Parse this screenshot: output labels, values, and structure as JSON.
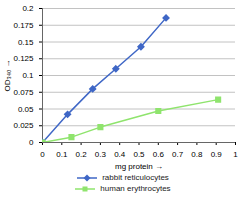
{
  "chart_data": {
    "type": "line",
    "x_label": "mg protein",
    "y_label": "OD₃₄₀",
    "series": [
      {
        "name": "rabbit reticulocytes",
        "color": "#3f67c6",
        "marker": "diamond",
        "x": [
          0,
          0.13,
          0.26,
          0.38,
          0.51,
          0.64
        ],
        "values": [
          0,
          0.042,
          0.08,
          0.11,
          0.143,
          0.186
        ]
      },
      {
        "name": "human erythrocytes",
        "color": "#8fe46d",
        "marker": "square",
        "x": [
          0,
          0.15,
          0.3,
          0.6,
          0.91
        ],
        "values": [
          0,
          0.008,
          0.023,
          0.047,
          0.064
        ]
      }
    ],
    "xlim": [
      0,
      1
    ],
    "xticks": [
      0,
      0.1,
      0.2,
      0.3,
      0.4,
      0.5,
      0.6,
      0.7,
      0.8,
      0.9,
      1
    ],
    "ylim": [
      0,
      0.2
    ],
    "yticks": [
      0,
      0.025,
      0.05,
      0.075,
      0.1,
      0.125,
      0.15,
      0.175,
      0.2
    ],
    "grid": true,
    "legend": "bottom"
  }
}
